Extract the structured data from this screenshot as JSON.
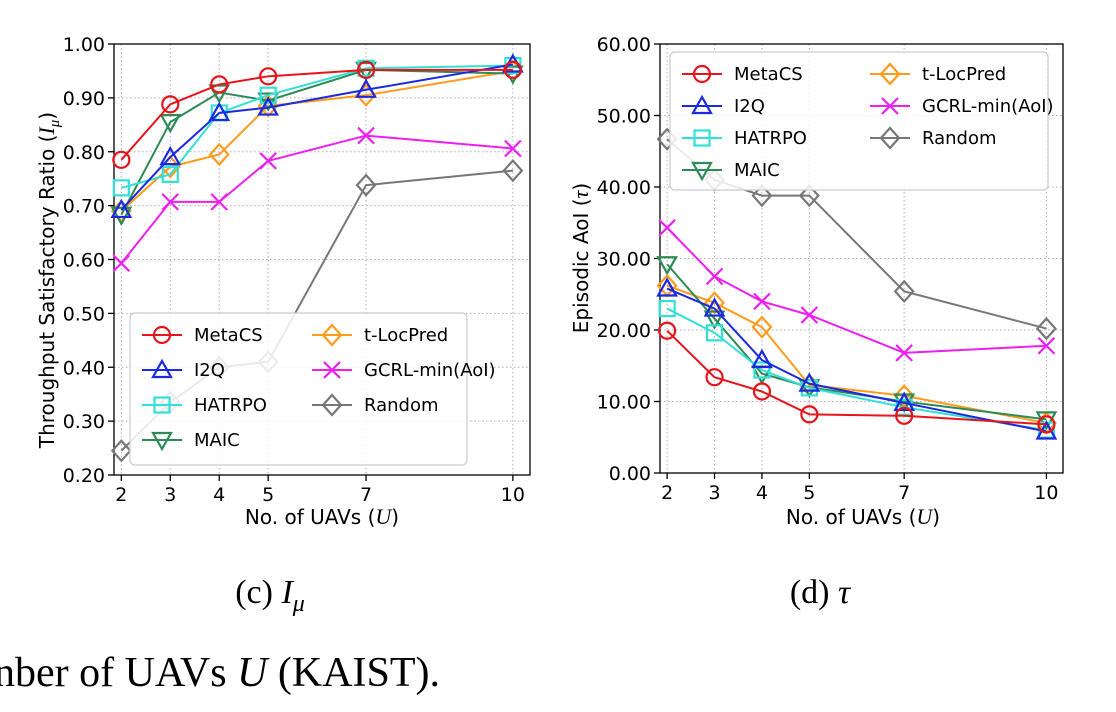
{
  "charts": [
    {
      "ylabel_prefix": "Throughput Satisfactory Ratio (",
      "ylabel_sym": "I",
      "ylabel_sub": "μ",
      "ylabel_suffix": ")",
      "xlabel_prefix": "No. of UAVs (",
      "xlabel_sym": "U",
      "xlabel_suffix": ")",
      "caption_prefix": "(c) ",
      "caption_sym": "I",
      "caption_sub": "μ"
    },
    {
      "ylabel_prefix": "Episodic AoI (",
      "ylabel_sym": "τ",
      "ylabel_suffix": ")",
      "xlabel_prefix": "No. of UAVs (",
      "xlabel_sym": "U",
      "xlabel_suffix": ")",
      "caption_prefix": "(d) ",
      "caption_sym": "τ"
    }
  ],
  "bottom_text_prefix": "nber of UAVs ",
  "bottom_text_sym": "U",
  "bottom_text_suffix": " (KAIST).",
  "chart_data": [
    {
      "type": "line",
      "x": [
        2,
        3,
        4,
        5,
        7,
        10
      ],
      "xticks": [
        "2",
        "3",
        "4",
        "5",
        "7",
        "10"
      ],
      "xlim": [
        1.85,
        10.35
      ],
      "ylim": [
        0.2,
        1.0
      ],
      "yticks": [
        "0.20",
        "0.30",
        "0.40",
        "0.50",
        "0.60",
        "0.70",
        "0.80",
        "0.90",
        "1.00"
      ],
      "grid": true,
      "legend_placement": "lower-right",
      "series": [
        {
          "name": "MetaCS",
          "color": "#e8141b",
          "marker": "circle",
          "values": [
            0.785,
            0.888,
            0.925,
            0.94,
            0.952,
            0.952
          ]
        },
        {
          "name": "I2Q",
          "color": "#1b29e0",
          "marker": "triangle-up",
          "values": [
            0.692,
            0.79,
            0.872,
            0.882,
            0.915,
            0.962
          ]
        },
        {
          "name": "HATRPO",
          "color": "#33e0d6",
          "marker": "square",
          "values": [
            0.733,
            0.758,
            0.872,
            0.905,
            0.955,
            0.96
          ]
        },
        {
          "name": "MAIC",
          "color": "#2e8b57",
          "marker": "triangle-down",
          "values": [
            0.683,
            0.855,
            0.91,
            0.895,
            0.952,
            0.945
          ]
        },
        {
          "name": "t-LocPred",
          "color": "#ff9a1a",
          "marker": "diamond",
          "values": [
            0.69,
            0.772,
            0.795,
            0.885,
            0.905,
            0.95
          ]
        },
        {
          "name": "GCRL-min(AoI)",
          "color": "#ee1ff0",
          "marker": "x",
          "values": [
            0.593,
            0.707,
            0.707,
            0.783,
            0.83,
            0.806
          ]
        },
        {
          "name": "Random",
          "color": "#777777",
          "marker": "diamond",
          "values": [
            0.245,
            0.335,
            0.4,
            0.41,
            0.738,
            0.765
          ]
        }
      ]
    },
    {
      "type": "line",
      "x": [
        2,
        3,
        4,
        5,
        7,
        10
      ],
      "xticks": [
        "2",
        "3",
        "4",
        "5",
        "7",
        "10"
      ],
      "xlim": [
        1.85,
        10.35
      ],
      "ylim": [
        0,
        60
      ],
      "yticks": [
        "0.00",
        "10.00",
        "20.00",
        "30.00",
        "40.00",
        "50.00",
        "60.00"
      ],
      "grid": true,
      "legend_placement": "upper-right",
      "series": [
        {
          "name": "MetaCS",
          "color": "#e8141b",
          "marker": "circle",
          "values": [
            19.9,
            13.4,
            11.4,
            8.2,
            8.0,
            6.8
          ]
        },
        {
          "name": "I2Q",
          "color": "#1b29e0",
          "marker": "triangle-up",
          "values": [
            25.8,
            23.0,
            15.8,
            12.5,
            9.8,
            5.8
          ]
        },
        {
          "name": "HATRPO",
          "color": "#33e0d6",
          "marker": "square",
          "values": [
            23.0,
            19.6,
            14.4,
            11.9,
            9.2,
            6.0
          ]
        },
        {
          "name": "MAIC",
          "color": "#2e8b57",
          "marker": "triangle-down",
          "values": [
            29.2,
            21.6,
            13.9,
            12.0,
            10.0,
            7.5
          ]
        },
        {
          "name": "t-LocPred",
          "color": "#ff9a1a",
          "marker": "diamond",
          "values": [
            26.2,
            23.8,
            20.4,
            12.3,
            10.8,
            7.0
          ]
        },
        {
          "name": "GCRL-min(AoI)",
          "color": "#ee1ff0",
          "marker": "x",
          "values": [
            34.3,
            27.5,
            24.0,
            22.1,
            16.8,
            17.8
          ]
        },
        {
          "name": "Random",
          "color": "#777777",
          "marker": "diamond",
          "values": [
            46.7,
            41.0,
            38.8,
            38.8,
            25.4,
            20.2
          ]
        }
      ]
    }
  ]
}
